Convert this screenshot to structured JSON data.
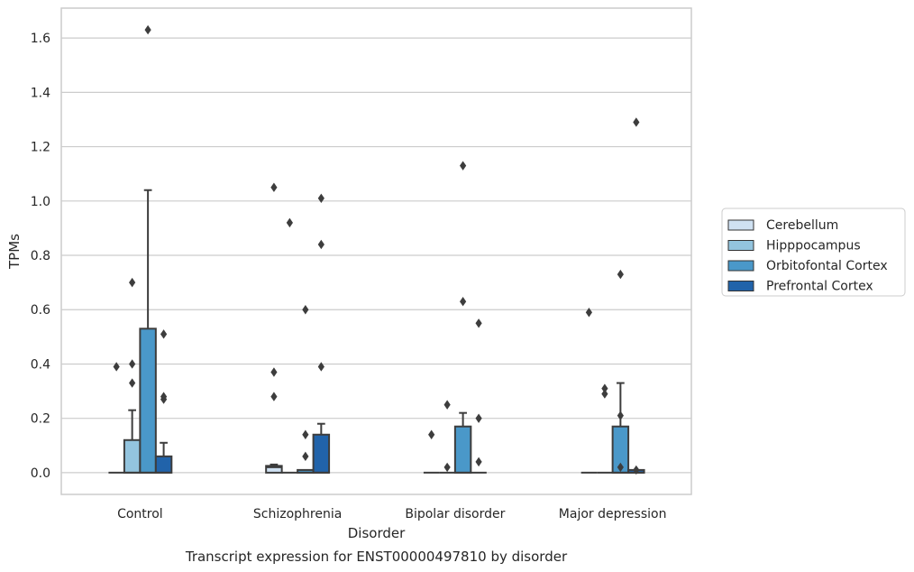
{
  "chart_data": {
    "type": "box",
    "caption": "Transcript expression for ENST00000497810 by disorder",
    "xlabel": "Disorder",
    "ylabel": "TPMs",
    "ylim": [
      -0.08,
      1.71
    ],
    "yticks": [
      "0.0",
      "0.2",
      "0.4",
      "0.6",
      "0.8",
      "1.0",
      "1.2",
      "1.4",
      "1.6"
    ],
    "grid": true,
    "legend_position": "right",
    "categories": [
      "Control",
      "Schizophrenia",
      "Bipolar disorder",
      "Major depression"
    ],
    "series": [
      {
        "name": "Cerebellum",
        "color": "#cfe1f2",
        "boxes": [
          {
            "q1": 0,
            "median": 0,
            "q3": 0,
            "whisker_low": 0,
            "whisker_high": 0,
            "outliers": [
              0.39
            ]
          },
          {
            "q1": 0,
            "median": 0.02,
            "q3": 0.025,
            "whisker_low": 0,
            "whisker_high": 0.03,
            "outliers": [
              1.05,
              0.37,
              0.28
            ]
          },
          {
            "q1": 0,
            "median": 0,
            "q3": 0,
            "whisker_low": 0,
            "whisker_high": 0,
            "outliers": [
              0.14
            ]
          },
          {
            "q1": 0,
            "median": 0,
            "q3": 0,
            "whisker_low": 0,
            "whisker_high": 0,
            "outliers": [
              0.59
            ]
          }
        ]
      },
      {
        "name": "Hipppocampus",
        "color": "#93c4de",
        "boxes": [
          {
            "q1": 0,
            "median": 0,
            "q3": 0.12,
            "whisker_low": 0,
            "whisker_high": 0.23,
            "outliers": [
              0.7,
              0.4,
              0.33
            ]
          },
          {
            "q1": 0,
            "median": 0,
            "q3": 0,
            "whisker_low": 0,
            "whisker_high": 0,
            "outliers": [
              0.92
            ]
          },
          {
            "q1": 0,
            "median": 0,
            "q3": 0,
            "whisker_low": 0,
            "whisker_high": 0,
            "outliers": [
              0.25,
              0.02
            ]
          },
          {
            "q1": 0,
            "median": 0,
            "q3": 0,
            "whisker_low": 0,
            "whisker_high": 0,
            "outliers": [
              0.31,
              0.29
            ]
          }
        ]
      },
      {
        "name": "Orbitofontal Cortex",
        "color": "#4a98c9",
        "boxes": [
          {
            "q1": 0,
            "median": 0,
            "q3": 0.53,
            "whisker_low": 0,
            "whisker_high": 1.04,
            "outliers": [
              1.63
            ]
          },
          {
            "q1": 0,
            "median": 0,
            "q3": 0.01,
            "whisker_low": 0,
            "whisker_high": 0.01,
            "outliers": [
              0.6,
              0.14,
              0.06
            ]
          },
          {
            "q1": 0,
            "median": 0,
            "q3": 0.17,
            "whisker_low": 0,
            "whisker_high": 0.22,
            "outliers": [
              1.13,
              0.63
            ]
          },
          {
            "q1": 0,
            "median": 0,
            "q3": 0.17,
            "whisker_low": 0,
            "whisker_high": 0.33,
            "outliers": [
              0.73,
              0.21,
              0.02
            ]
          }
        ]
      },
      {
        "name": "Prefrontal Cortex",
        "color": "#2163aa",
        "boxes": [
          {
            "q1": 0,
            "median": 0,
            "q3": 0.06,
            "whisker_low": 0,
            "whisker_high": 0.11,
            "outliers": [
              0.51,
              0.28,
              0.27
            ]
          },
          {
            "q1": 0,
            "median": 0,
            "q3": 0.14,
            "whisker_low": 0,
            "whisker_high": 0.18,
            "outliers": [
              1.01,
              0.84,
              0.39
            ]
          },
          {
            "q1": 0,
            "median": 0,
            "q3": 0,
            "whisker_low": 0,
            "whisker_high": 0,
            "outliers": [
              0.55,
              0.2,
              0.04
            ]
          },
          {
            "q1": 0,
            "median": 0,
            "q3": 0.01,
            "whisker_low": 0,
            "whisker_high": 0.01,
            "outliers": [
              1.29,
              0.01
            ]
          }
        ]
      }
    ]
  }
}
